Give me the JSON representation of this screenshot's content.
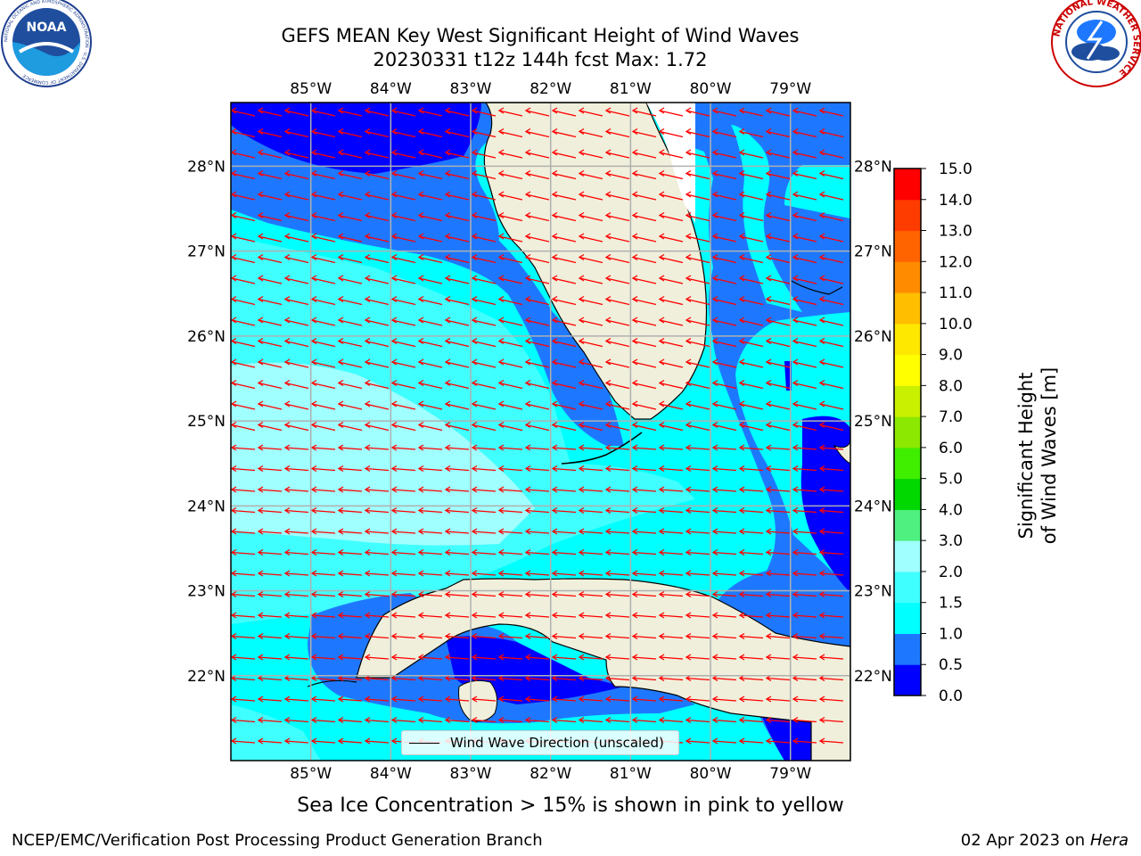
{
  "title": {
    "line1": "GEFS MEAN Key West Significant Height of Wind Waves",
    "line2": "20230331 t12z 144h fcst   Max: 1.72"
  },
  "logos": {
    "noaa_text": "NOAA",
    "noaa_ring": "NATIONAL OCEANIC AND ATMOSPHERIC ADMINISTRATION · U.S. DEPARTMENT OF COMMERCE",
    "nws_ring": "NATIONAL WEATHER SERVICE"
  },
  "map": {
    "lon_ticks": [
      "85°W",
      "84°W",
      "83°W",
      "82°W",
      "81°W",
      "80°W",
      "79°W"
    ],
    "lon_values": [
      -85,
      -84,
      -83,
      -82,
      -81,
      -80,
      -79
    ],
    "lat_ticks": [
      "28°N",
      "27°N",
      "26°N",
      "25°N",
      "24°N",
      "23°N",
      "22°N"
    ],
    "lat_values": [
      28,
      27,
      26,
      25,
      24,
      23,
      22
    ],
    "extent": {
      "lon": [
        -86,
        -78.25
      ],
      "lat": [
        21,
        28.75
      ]
    },
    "land_color": "#efefdb",
    "grid_color": "#b0b0b0",
    "arrow_color": "#ff0000",
    "legend_label": "Wind Wave Direction (unscaled)",
    "level_colors": {
      "0.0-0.5": "#0000ff",
      "0.5-1.0": "#1e78ff",
      "1.0-1.5": "#00ffff",
      "1.5-2.0": "#40ffff",
      "2.0-3.0": "#a0ffff"
    }
  },
  "colorbar": {
    "label": "Significant Height of Wind Waves [m]",
    "ticks": [
      "0.0",
      "0.5",
      "1.0",
      "1.5",
      "2.0",
      "3.0",
      "4.0",
      "5.0",
      "6.0",
      "7.0",
      "8.0",
      "9.0",
      "10.0",
      "11.0",
      "12.0",
      "13.0",
      "14.0",
      "15.0"
    ],
    "colors": [
      "#0000ff",
      "#1e78ff",
      "#00ffff",
      "#40ffff",
      "#a0ffff",
      "#50f080",
      "#00d800",
      "#40ee00",
      "#8ce800",
      "#c8f000",
      "#ffff00",
      "#ffe800",
      "#ffbf00",
      "#ff8c00",
      "#ff6400",
      "#ff3c00",
      "#ff0000"
    ]
  },
  "subtitle": "Sea Ice Concentration > 15% is shown in pink to yellow",
  "footer": {
    "left": "NCEP/EMC/Verification Post Processing Product Generation Branch",
    "date": "02 Apr 2023 on ",
    "machine": "Hera"
  }
}
